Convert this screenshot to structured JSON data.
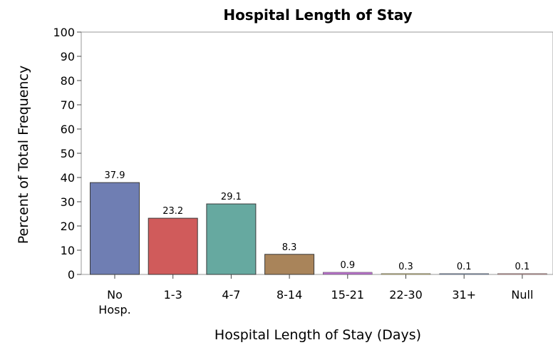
{
  "chart_data": {
    "type": "bar",
    "title": "Hospital Length of Stay",
    "xlabel": "Hospital Length of Stay (Days)",
    "ylabel": "Percent of Total Frequency",
    "ylim": [
      0,
      100
    ],
    "yticks": [
      "0",
      "10",
      "20",
      "30",
      "40",
      "50",
      "60",
      "70",
      "80",
      "90",
      "100"
    ],
    "categories": [
      [
        "No",
        "Hosp."
      ],
      [
        "1-3"
      ],
      [
        "4-7"
      ],
      [
        "8-14"
      ],
      [
        "15-21"
      ],
      [
        "22-30"
      ],
      [
        "31+"
      ],
      [
        "Null"
      ]
    ],
    "values": [
      37.9,
      23.2,
      29.1,
      8.3,
      0.9,
      0.3,
      0.1,
      0.1
    ],
    "data_labels": [
      "37.9",
      "23.2",
      "29.1",
      "8.3",
      "0.9",
      "0.3",
      "0.1",
      "0.1"
    ],
    "colors": [
      "#6f7eb3",
      "#d05b5b",
      "#66a9a0",
      "#a9845a",
      "#b672c8",
      "#c4b776",
      "#7b8fb0",
      "#c89595"
    ],
    "grid": false,
    "legend": "none"
  }
}
